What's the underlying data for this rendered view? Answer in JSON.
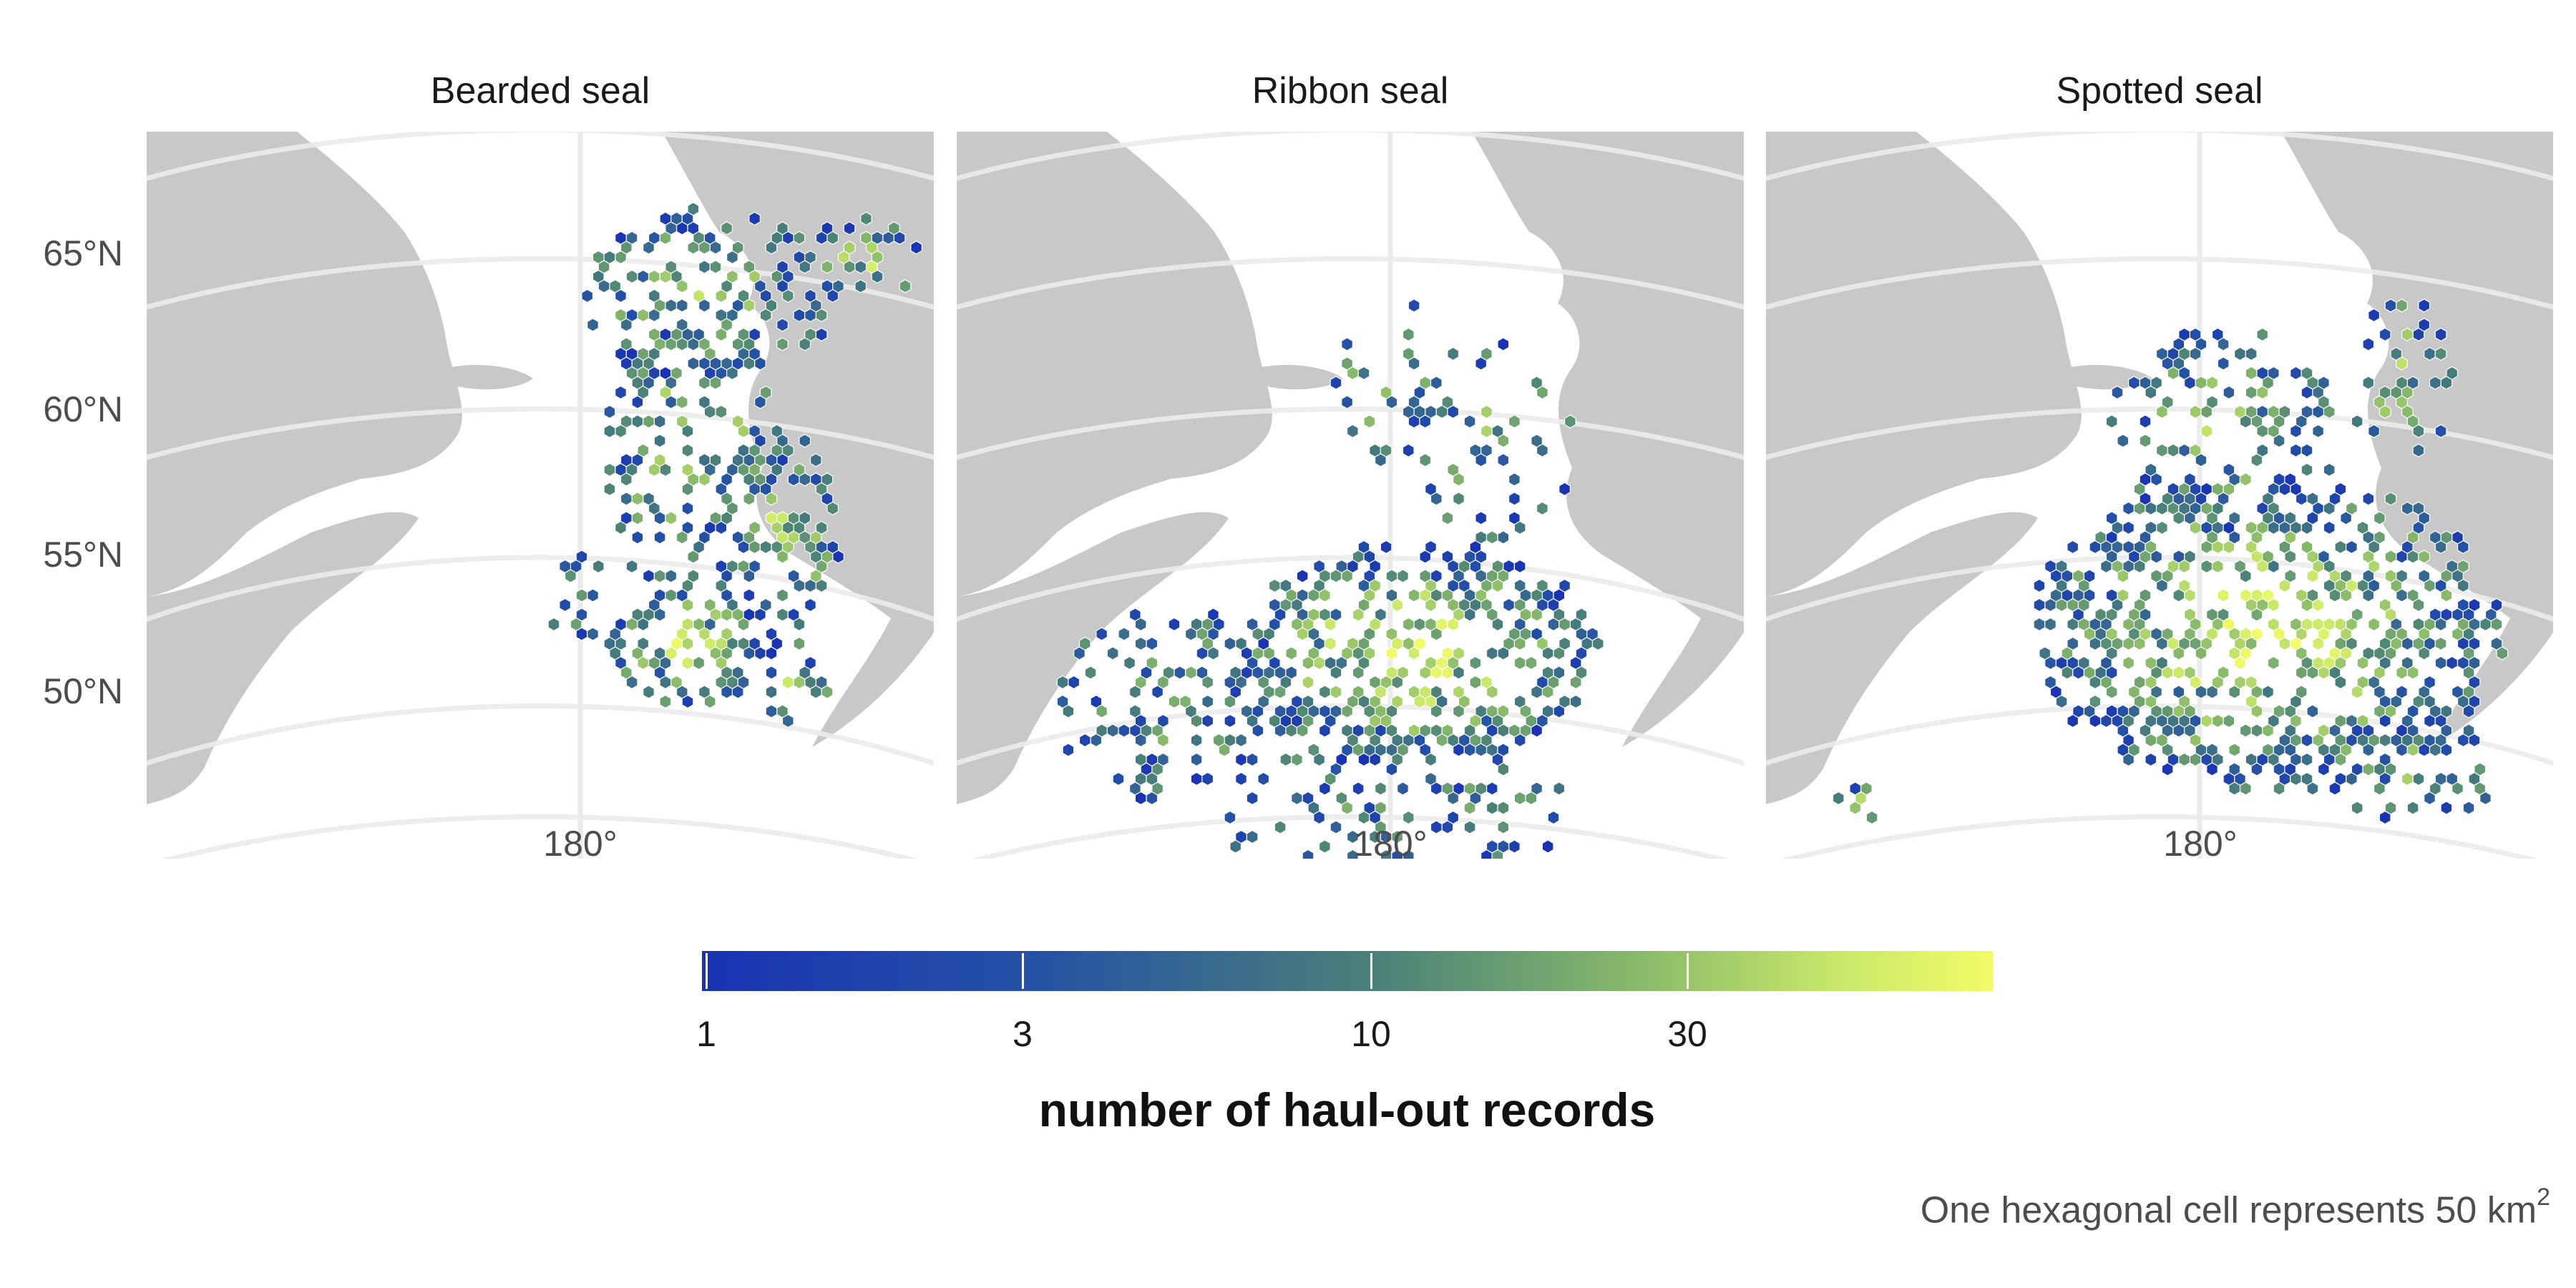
{
  "panels": [
    {
      "id": "bearded",
      "title": "Bearded seal"
    },
    {
      "id": "ribbon",
      "title": "Ribbon seal"
    },
    {
      "id": "spotted",
      "title": "Spotted seal"
    }
  ],
  "axes": {
    "lat_labels": [
      "65°N",
      "60°N",
      "55°N",
      "50°N"
    ],
    "lon_label": "180°"
  },
  "legend": {
    "title": "number of haul-out records",
    "scale": "log",
    "ticks": [
      "1",
      "3",
      "10",
      "30"
    ],
    "colors": [
      "#1a33b3",
      "#2450a6",
      "#4a8079",
      "#86b86a",
      "#c8e86a",
      "#f2fb68"
    ]
  },
  "caption": {
    "text": "One hexagonal cell represents 50 km",
    "superscript": "2"
  },
  "colors": {
    "land": "#c8c8c8",
    "graticule": "#ebebeb",
    "hex_low": "#1a33b3",
    "hex_mid": "#4a8079",
    "hex_high": "#f2fb68"
  }
}
